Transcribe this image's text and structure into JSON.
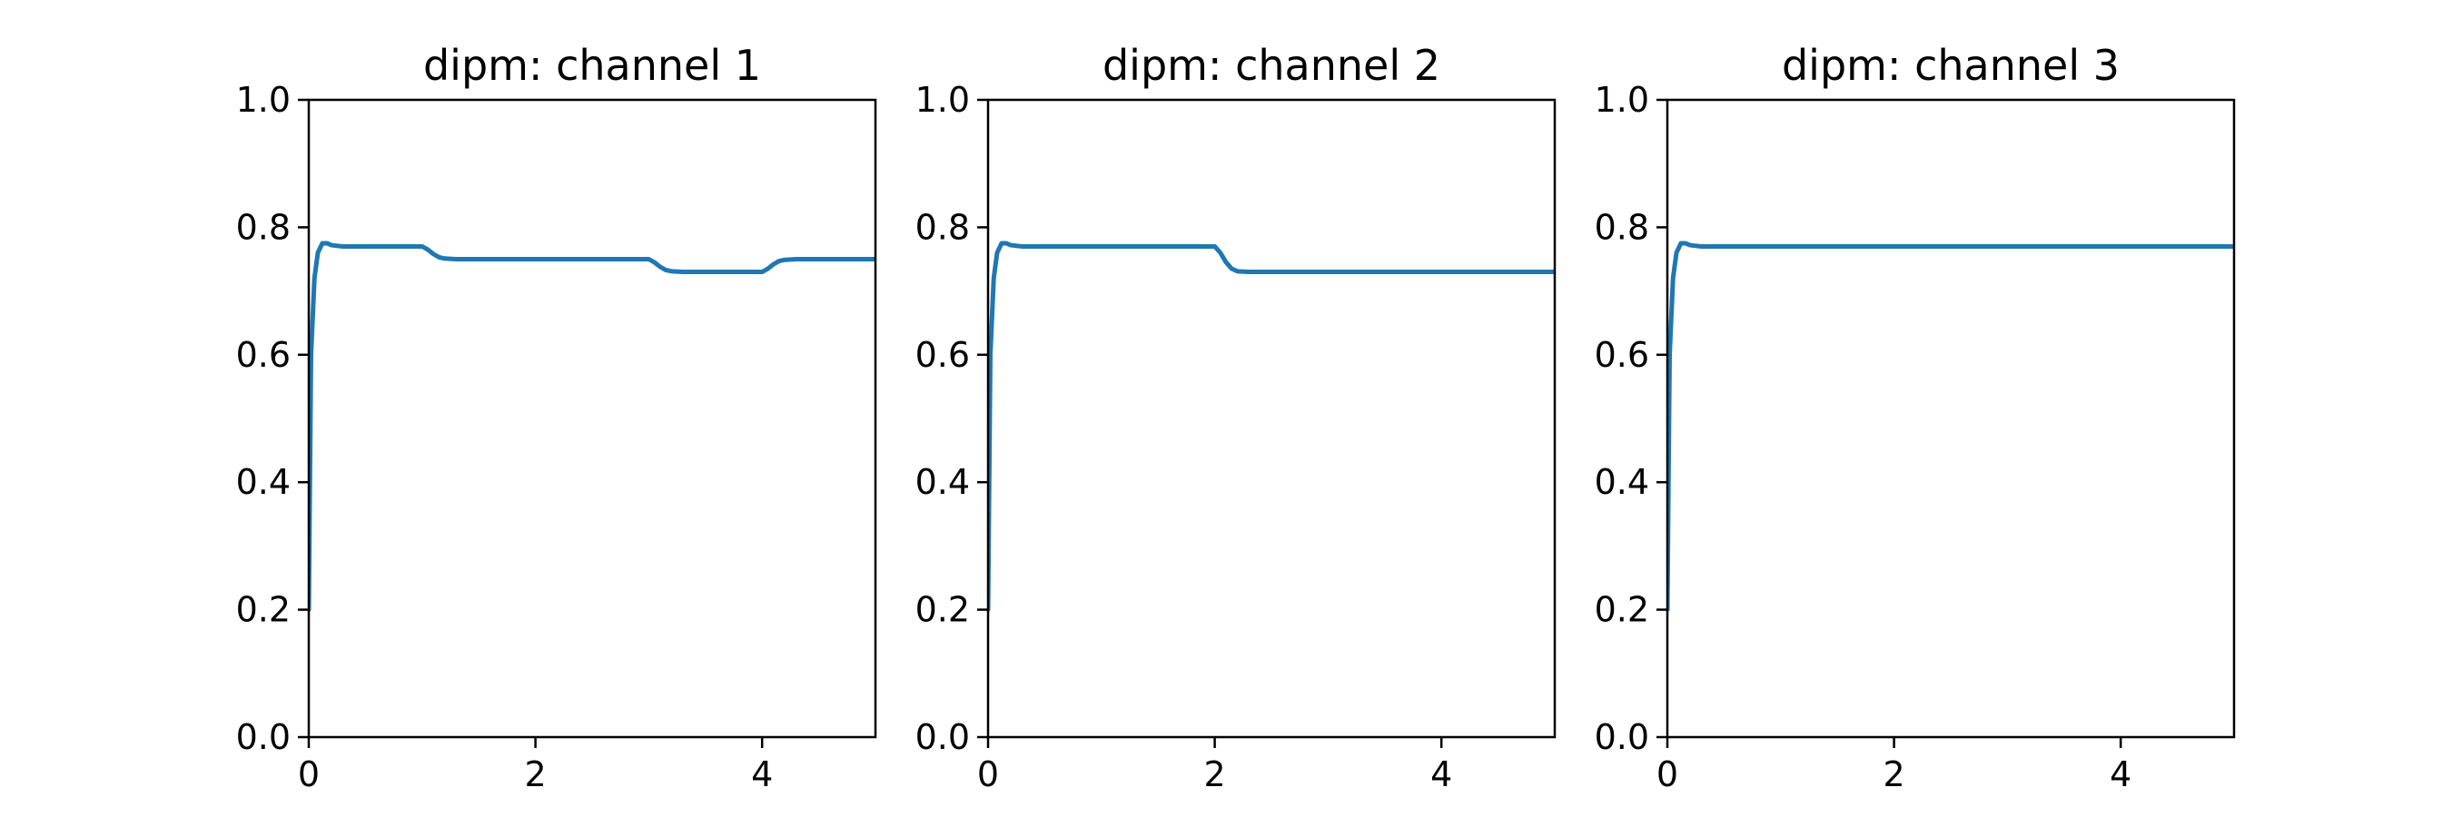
{
  "chart_data": [
    {
      "type": "line",
      "title": "dipm: channel 1",
      "xlabel": "",
      "ylabel": "",
      "xlim": [
        0,
        5
      ],
      "ylim": [
        0,
        1.0
      ],
      "x_ticks": [
        "0",
        "2",
        "4"
      ],
      "y_ticks": [
        "0.0",
        "0.2",
        "0.4",
        "0.6",
        "0.8",
        "1.0"
      ],
      "grid": false,
      "color": "#1f77b4",
      "series": [
        {
          "name": "dipm channel 1",
          "x": [
            0,
            0.02,
            0.05,
            0.08,
            0.12,
            0.16,
            0.2,
            0.3,
            1.0,
            1.05,
            1.1,
            1.15,
            1.2,
            1.3,
            3.0,
            3.05,
            3.1,
            3.15,
            3.2,
            3.3,
            4.0,
            4.05,
            4.1,
            4.15,
            4.2,
            4.3,
            5.0
          ],
          "y": [
            0.2,
            0.6,
            0.72,
            0.76,
            0.775,
            0.775,
            0.772,
            0.77,
            0.77,
            0.765,
            0.758,
            0.753,
            0.751,
            0.75,
            0.75,
            0.745,
            0.738,
            0.733,
            0.731,
            0.73,
            0.73,
            0.735,
            0.742,
            0.747,
            0.749,
            0.75,
            0.75
          ]
        }
      ]
    },
    {
      "type": "line",
      "title": "dipm: channel 2",
      "xlabel": "",
      "ylabel": "",
      "xlim": [
        0,
        5
      ],
      "ylim": [
        0,
        1.0
      ],
      "x_ticks": [
        "0",
        "2",
        "4"
      ],
      "y_ticks": [
        "0.0",
        "0.2",
        "0.4",
        "0.6",
        "0.8",
        "1.0"
      ],
      "grid": false,
      "color": "#1f77b4",
      "series": [
        {
          "name": "dipm channel 2",
          "x": [
            0,
            0.02,
            0.05,
            0.08,
            0.12,
            0.16,
            0.2,
            0.3,
            2.0,
            2.05,
            2.1,
            2.15,
            2.2,
            2.3,
            5.0
          ],
          "y": [
            0.2,
            0.6,
            0.72,
            0.76,
            0.775,
            0.775,
            0.772,
            0.77,
            0.77,
            0.76,
            0.745,
            0.735,
            0.731,
            0.73,
            0.73
          ]
        }
      ]
    },
    {
      "type": "line",
      "title": "dipm: channel 3",
      "xlabel": "",
      "ylabel": "",
      "xlim": [
        0,
        5
      ],
      "ylim": [
        0,
        1.0
      ],
      "x_ticks": [
        "0",
        "2",
        "4"
      ],
      "y_ticks": [
        "0.0",
        "0.2",
        "0.4",
        "0.6",
        "0.8",
        "1.0"
      ],
      "grid": false,
      "color": "#1f77b4",
      "series": [
        {
          "name": "dipm channel 3",
          "x": [
            0,
            0.02,
            0.05,
            0.08,
            0.12,
            0.16,
            0.2,
            0.3,
            5.0
          ],
          "y": [
            0.2,
            0.6,
            0.72,
            0.76,
            0.775,
            0.775,
            0.772,
            0.77,
            0.77
          ]
        }
      ]
    }
  ]
}
